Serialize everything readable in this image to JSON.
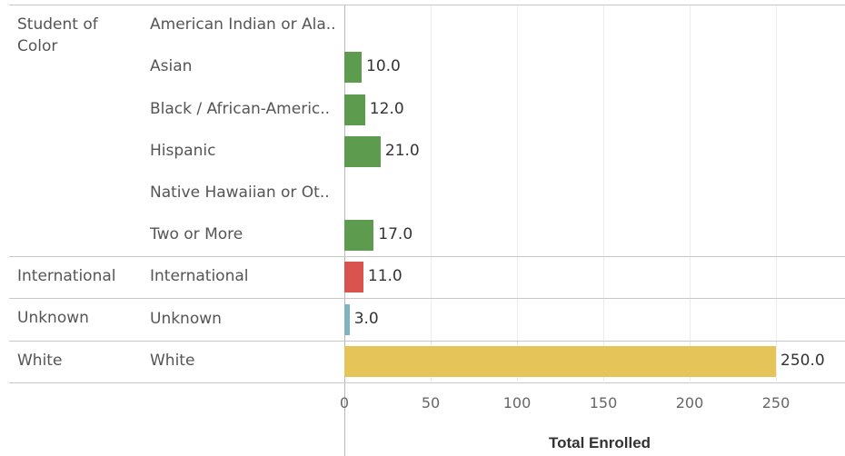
{
  "chart_data": {
    "type": "bar",
    "orientation": "horizontal",
    "xlabel": "Total Enrolled",
    "xlim": [
      0,
      300
    ],
    "xticks": [
      0,
      50,
      100,
      150,
      200,
      250
    ],
    "grid": true,
    "groups": [
      {
        "name": "Student of Color",
        "color": "#5d9b4f",
        "rows": [
          {
            "category": "American Indian or Ala..",
            "value": null,
            "label": ""
          },
          {
            "category": "Asian",
            "value": 10.0,
            "label": "10.0"
          },
          {
            "category": "Black / African-Americ..",
            "value": 12.0,
            "label": "12.0"
          },
          {
            "category": "Hispanic",
            "value": 21.0,
            "label": "21.0"
          },
          {
            "category": "Native Hawaiian or Ot..",
            "value": null,
            "label": ""
          },
          {
            "category": "Two or More",
            "value": 17.0,
            "label": "17.0"
          }
        ]
      },
      {
        "name": "International",
        "color": "#d9534f",
        "rows": [
          {
            "category": "International",
            "value": 11.0,
            "label": "11.0"
          }
        ]
      },
      {
        "name": "Unknown",
        "color": "#7fb3bf",
        "rows": [
          {
            "category": "Unknown",
            "value": 3.0,
            "label": "3.0"
          }
        ]
      },
      {
        "name": "White",
        "color": "#e5c55a",
        "rows": [
          {
            "category": "White",
            "value": 250.0,
            "label": "250.0"
          }
        ]
      }
    ]
  }
}
